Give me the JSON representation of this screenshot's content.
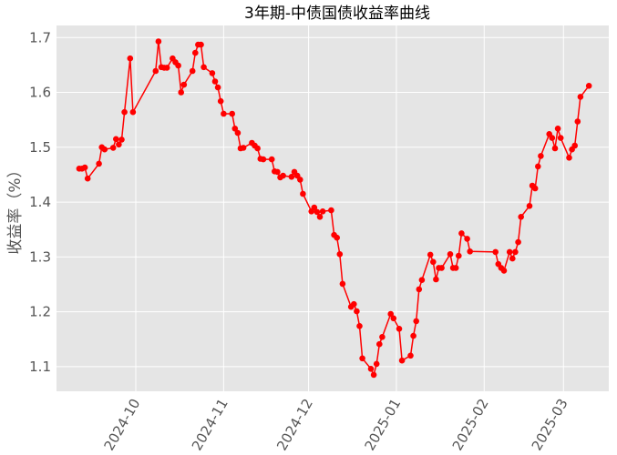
{
  "chart_data": {
    "type": "line",
    "title": "3年期-中债国债收益率曲线",
    "xlabel": "",
    "ylabel": "收益率（%）",
    "xlim": [
      "2024-09-03",
      "2025-03-17"
    ],
    "ylim": [
      1.055,
      1.722
    ],
    "grid": true,
    "colors": {
      "line": "#ff0000",
      "marker": "#ff0000",
      "plot_background": "#e5e5e5",
      "grid": "#ffffff"
    },
    "marker": "circle",
    "x_ticks": [
      "2024-10",
      "2024-11",
      "2024-12",
      "2025-01",
      "2025-02",
      "2025-03"
    ],
    "y_ticks": [
      "1.1",
      "1.2",
      "1.3",
      "1.4",
      "1.5",
      "1.6",
      "1.7"
    ],
    "series": [
      {
        "x": [
          "2024-09-11",
          "2024-09-12",
          "2024-09-13",
          "2024-09-14",
          "2024-09-18",
          "2024-09-19",
          "2024-09-20",
          "2024-09-23",
          "2024-09-24",
          "2024-09-25",
          "2024-09-26",
          "2024-09-27",
          "2024-09-29",
          "2024-09-30",
          "2024-10-08",
          "2024-10-09",
          "2024-10-10",
          "2024-10-11",
          "2024-10-12",
          "2024-10-14",
          "2024-10-15",
          "2024-10-16",
          "2024-10-17",
          "2024-10-18",
          "2024-10-21",
          "2024-10-22",
          "2024-10-23",
          "2024-10-24",
          "2024-10-25",
          "2024-10-28",
          "2024-10-29",
          "2024-10-30",
          "2024-10-31",
          "2024-11-01",
          "2024-11-04",
          "2024-11-05",
          "2024-11-06",
          "2024-11-07",
          "2024-11-08",
          "2024-11-11",
          "2024-11-12",
          "2024-11-13",
          "2024-11-14",
          "2024-11-15",
          "2024-11-18",
          "2024-11-19",
          "2024-11-20",
          "2024-11-21",
          "2024-11-22",
          "2024-11-25",
          "2024-11-26",
          "2024-11-27",
          "2024-11-28",
          "2024-11-29",
          "2024-12-02",
          "2024-12-03",
          "2024-12-04",
          "2024-12-05",
          "2024-12-06",
          "2024-12-09",
          "2024-12-10",
          "2024-12-11",
          "2024-12-12",
          "2024-12-13",
          "2024-12-16",
          "2024-12-17",
          "2024-12-18",
          "2024-12-19",
          "2024-12-20",
          "2024-12-23",
          "2024-12-24",
          "2024-12-25",
          "2024-12-26",
          "2024-12-27",
          "2024-12-30",
          "2024-12-31",
          "2025-01-02",
          "2025-01-03",
          "2025-01-06",
          "2025-01-07",
          "2025-01-08",
          "2025-01-09",
          "2025-01-10",
          "2025-01-13",
          "2025-01-14",
          "2025-01-15",
          "2025-01-16",
          "2025-01-17",
          "2025-01-20",
          "2025-01-21",
          "2025-01-22",
          "2025-01-23",
          "2025-01-24",
          "2025-01-26",
          "2025-01-27",
          "2025-02-05",
          "2025-02-06",
          "2025-02-07",
          "2025-02-08",
          "2025-02-10",
          "2025-02-11",
          "2025-02-12",
          "2025-02-13",
          "2025-02-14",
          "2025-02-17",
          "2025-02-18",
          "2025-02-19",
          "2025-02-20",
          "2025-02-21",
          "2025-02-24",
          "2025-02-25",
          "2025-02-26",
          "2025-02-27",
          "2025-02-28",
          "2025-03-03",
          "2025-03-04",
          "2025-03-05",
          "2025-03-06",
          "2025-03-07",
          "2025-03-10"
        ],
        "y": [
          1.461,
          1.461,
          1.463,
          1.443,
          1.47,
          1.5,
          1.496,
          1.499,
          1.515,
          1.505,
          1.514,
          1.564,
          1.662,
          1.564,
          1.639,
          1.693,
          1.646,
          1.645,
          1.645,
          1.662,
          1.655,
          1.649,
          1.6,
          1.614,
          1.639,
          1.672,
          1.687,
          1.687,
          1.646,
          1.635,
          1.62,
          1.609,
          1.584,
          1.561,
          1.561,
          1.534,
          1.526,
          1.498,
          1.499,
          1.508,
          1.503,
          1.498,
          1.479,
          1.478,
          1.478,
          1.456,
          1.455,
          1.445,
          1.448,
          1.446,
          1.455,
          1.448,
          1.441,
          1.415,
          1.383,
          1.39,
          1.382,
          1.373,
          1.383,
          1.385,
          1.34,
          1.335,
          1.305,
          1.251,
          1.209,
          1.214,
          1.201,
          1.174,
          1.115,
          1.096,
          1.085,
          1.105,
          1.141,
          1.154,
          1.196,
          1.188,
          1.169,
          1.111,
          1.12,
          1.156,
          1.183,
          1.241,
          1.258,
          1.304,
          1.291,
          1.259,
          1.28,
          1.28,
          1.305,
          1.28,
          1.28,
          1.302,
          1.343,
          1.333,
          1.31,
          1.309,
          1.287,
          1.28,
          1.275,
          1.309,
          1.297,
          1.309,
          1.327,
          1.373,
          1.393,
          1.43,
          1.425,
          1.465,
          1.484,
          1.524,
          1.517,
          1.498,
          1.534,
          1.517,
          1.481,
          1.496,
          1.503,
          1.547,
          1.592,
          1.612
        ]
      }
    ]
  }
}
